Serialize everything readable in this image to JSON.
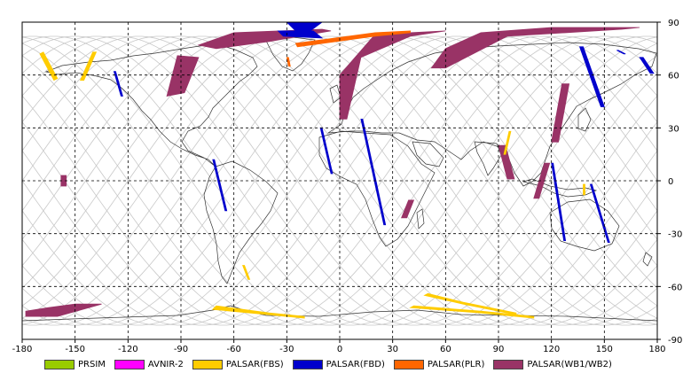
{
  "chart_data": {
    "type": "map",
    "projection": "equirectangular",
    "xlim": [
      -180,
      180
    ],
    "ylim": [
      -90,
      90
    ],
    "x_ticks": [
      -180,
      -150,
      -120,
      -90,
      -60,
      -30,
      0,
      30,
      60,
      90,
      120,
      150,
      180
    ],
    "x_tick_labels": [
      "-180",
      "-150",
      "-120",
      "-90",
      "-60",
      "-30",
      "0",
      "30",
      "60",
      "90",
      "120",
      "150",
      "180"
    ],
    "y_ticks": [
      90,
      60,
      30,
      0,
      -30,
      -60,
      -90
    ],
    "y_tick_labels": [
      "90",
      "60",
      "30",
      "0",
      "-30",
      "-60",
      "-90"
    ],
    "grid": "dashed",
    "legend_position": "bottom",
    "legend": [
      {
        "label": "PRSIM",
        "color": "#99cc00"
      },
      {
        "label": "AVNIR-2",
        "color": "#ff00ff"
      },
      {
        "label": "PALSAR(FBS)",
        "color": "#ffcc00"
      },
      {
        "label": "PALSAR(FBD)",
        "color": "#0000cc"
      },
      {
        "label": "PALSAR(PLR)",
        "color": "#ff6600"
      },
      {
        "label": "PALSAR(WB1/WB2)",
        "color": "#993366"
      }
    ],
    "orbit_color": "#c8c8c8",
    "coastline_color": "#333333",
    "swaths": [
      {
        "sensor": "PALSAR(WB1/WB2)",
        "points": [
          [
            -98,
            48
          ],
          [
            -88,
            50
          ],
          [
            -80,
            70
          ],
          [
            -92,
            71
          ]
        ]
      },
      {
        "sensor": "PALSAR(WB1/WB2)",
        "points": [
          [
            -80,
            77
          ],
          [
            -60,
            84
          ],
          [
            -10,
            86
          ],
          [
            -5,
            85
          ],
          [
            -40,
            79
          ],
          [
            -70,
            75
          ]
        ]
      },
      {
        "sensor": "PALSAR(WB1/WB2)",
        "points": [
          [
            0,
            35
          ],
          [
            4,
            35
          ],
          [
            12,
            70
          ],
          [
            40,
            82
          ],
          [
            60,
            85
          ],
          [
            20,
            83
          ],
          [
            0,
            60
          ]
        ]
      },
      {
        "sensor": "PALSAR(WB1/WB2)",
        "points": [
          [
            52,
            64
          ],
          [
            60,
            64
          ],
          [
            95,
            82
          ],
          [
            160,
            86
          ],
          [
            170,
            87
          ],
          [
            120,
            87
          ],
          [
            80,
            84
          ],
          [
            60,
            75
          ]
        ]
      },
      {
        "sensor": "PALSAR(WB1/WB2)",
        "points": [
          [
            120,
            22
          ],
          [
            124,
            22
          ],
          [
            130,
            55
          ],
          [
            126,
            55
          ]
        ]
      },
      {
        "sensor": "PALSAR(WB1/WB2)",
        "points": [
          [
            90,
            20
          ],
          [
            94,
            20
          ],
          [
            99,
            1
          ],
          [
            95,
            1
          ]
        ]
      },
      {
        "sensor": "PALSAR(WB1/WB2)",
        "points": [
          [
            110,
            -10
          ],
          [
            113,
            -10
          ],
          [
            119,
            10
          ],
          [
            116,
            10
          ]
        ]
      },
      {
        "sensor": "PALSAR(WB1/WB2)",
        "points": [
          [
            35,
            -21
          ],
          [
            38,
            -21
          ],
          [
            42,
            -11
          ],
          [
            39,
            -11
          ]
        ]
      },
      {
        "sensor": "PALSAR(WB1/WB2)",
        "points": [
          [
            -158,
            3
          ],
          [
            -155,
            3
          ],
          [
            -155,
            -3
          ],
          [
            -158,
            -3
          ]
        ]
      },
      {
        "sensor": "PALSAR(WB1/WB2)",
        "points": [
          [
            -165,
            -72
          ],
          [
            -150,
            -70
          ],
          [
            -135,
            -70
          ],
          [
            -160,
            -77
          ],
          [
            -178,
            -77
          ],
          [
            -178,
            -74
          ]
        ]
      },
      {
        "sensor": "PALSAR(FBS)",
        "points": [
          [
            -170,
            72
          ],
          [
            -168,
            73
          ],
          [
            -160,
            58
          ],
          [
            -162,
            57
          ]
        ]
      },
      {
        "sensor": "PALSAR(FBS)",
        "points": [
          [
            -140,
            73
          ],
          [
            -138,
            73
          ],
          [
            -145,
            57
          ],
          [
            -147,
            57
          ]
        ]
      },
      {
        "sensor": "PALSAR(FBS)",
        "points": [
          [
            -55,
            -48
          ],
          [
            -54,
            -48
          ],
          [
            -51,
            -56
          ],
          [
            -52,
            -56
          ]
        ]
      },
      {
        "sensor": "PALSAR(FBS)",
        "points": [
          [
            -72,
            -73
          ],
          [
            -40,
            -76
          ],
          [
            -20,
            -78
          ],
          [
            -20,
            -77
          ],
          [
            -40,
            -75
          ],
          [
            -70,
            -71
          ]
        ]
      },
      {
        "sensor": "PALSAR(FBS)",
        "points": [
          [
            40,
            -72
          ],
          [
            80,
            -75
          ],
          [
            110,
            -78
          ],
          [
            110,
            -77
          ],
          [
            80,
            -74
          ],
          [
            42,
            -71
          ]
        ]
      },
      {
        "sensor": "PALSAR(FBS)",
        "points": [
          [
            48,
            -65
          ],
          [
            70,
            -70
          ],
          [
            100,
            -76
          ],
          [
            100,
            -75
          ],
          [
            70,
            -69
          ],
          [
            50,
            -64
          ]
        ]
      },
      {
        "sensor": "PALSAR(FBS)",
        "points": [
          [
            96,
            28
          ],
          [
            97,
            28
          ],
          [
            94,
            15
          ],
          [
            93,
            15
          ]
        ]
      },
      {
        "sensor": "PALSAR(FBS)",
        "points": [
          [
            138,
            -2
          ],
          [
            139,
            -2
          ],
          [
            139,
            -8
          ],
          [
            138,
            -8
          ]
        ]
      },
      {
        "sensor": "PALSAR(FBD)",
        "points": [
          [
            -128,
            62
          ],
          [
            -127,
            62
          ],
          [
            -123,
            48
          ],
          [
            -124,
            48
          ]
        ]
      },
      {
        "sensor": "PALSAR(FBD)",
        "points": [
          [
            -72,
            12
          ],
          [
            -71,
            12
          ],
          [
            -64,
            -17
          ],
          [
            -65,
            -17
          ]
        ]
      },
      {
        "sensor": "PALSAR(FBD)",
        "points": [
          [
            -11,
            30
          ],
          [
            -10,
            30
          ],
          [
            -4,
            4
          ],
          [
            -5,
            4
          ]
        ]
      },
      {
        "sensor": "PALSAR(FBD)",
        "points": [
          [
            12,
            35
          ],
          [
            13,
            35
          ],
          [
            26,
            -25
          ],
          [
            25,
            -25
          ]
        ]
      },
      {
        "sensor": "PALSAR(FBD)",
        "points": [
          [
            120,
            10
          ],
          [
            121,
            10
          ],
          [
            128,
            -34
          ],
          [
            127,
            -34
          ]
        ]
      },
      {
        "sensor": "PALSAR(FBD)",
        "points": [
          [
            142,
            -2
          ],
          [
            143,
            -2
          ],
          [
            153,
            -35
          ],
          [
            152,
            -35
          ]
        ]
      },
      {
        "sensor": "PALSAR(FBD)",
        "points": [
          [
            136,
            76
          ],
          [
            138,
            76
          ],
          [
            150,
            42
          ],
          [
            148,
            42
          ]
        ]
      },
      {
        "sensor": "PALSAR(FBD)",
        "points": [
          [
            157,
            74
          ],
          [
            158,
            74
          ],
          [
            162,
            72
          ],
          [
            161,
            72
          ]
        ]
      },
      {
        "sensor": "PALSAR(FBD)",
        "points": [
          [
            170,
            70
          ],
          [
            172,
            70
          ],
          [
            178,
            61
          ],
          [
            176,
            61
          ]
        ]
      },
      {
        "sensor": "PALSAR(FBD)",
        "points": [
          [
            -30,
            90
          ],
          [
            -10,
            90
          ],
          [
            -18,
            84
          ],
          [
            -24,
            84
          ]
        ]
      },
      {
        "sensor": "PALSAR(FBD)",
        "points": [
          [
            -35,
            85
          ],
          [
            -15,
            85
          ],
          [
            -10,
            81
          ],
          [
            -32,
            82
          ]
        ]
      },
      {
        "sensor": "PALSAR(PLR)",
        "points": [
          [
            -25,
            78
          ],
          [
            20,
            84
          ],
          [
            40,
            85
          ],
          [
            40,
            84
          ],
          [
            20,
            82
          ],
          [
            -24,
            76
          ]
        ]
      },
      {
        "sensor": "PALSAR(PLR)",
        "points": [
          [
            -30,
            70
          ],
          [
            -29,
            70
          ],
          [
            -28,
            65
          ],
          [
            -29,
            65
          ]
        ]
      }
    ]
  }
}
